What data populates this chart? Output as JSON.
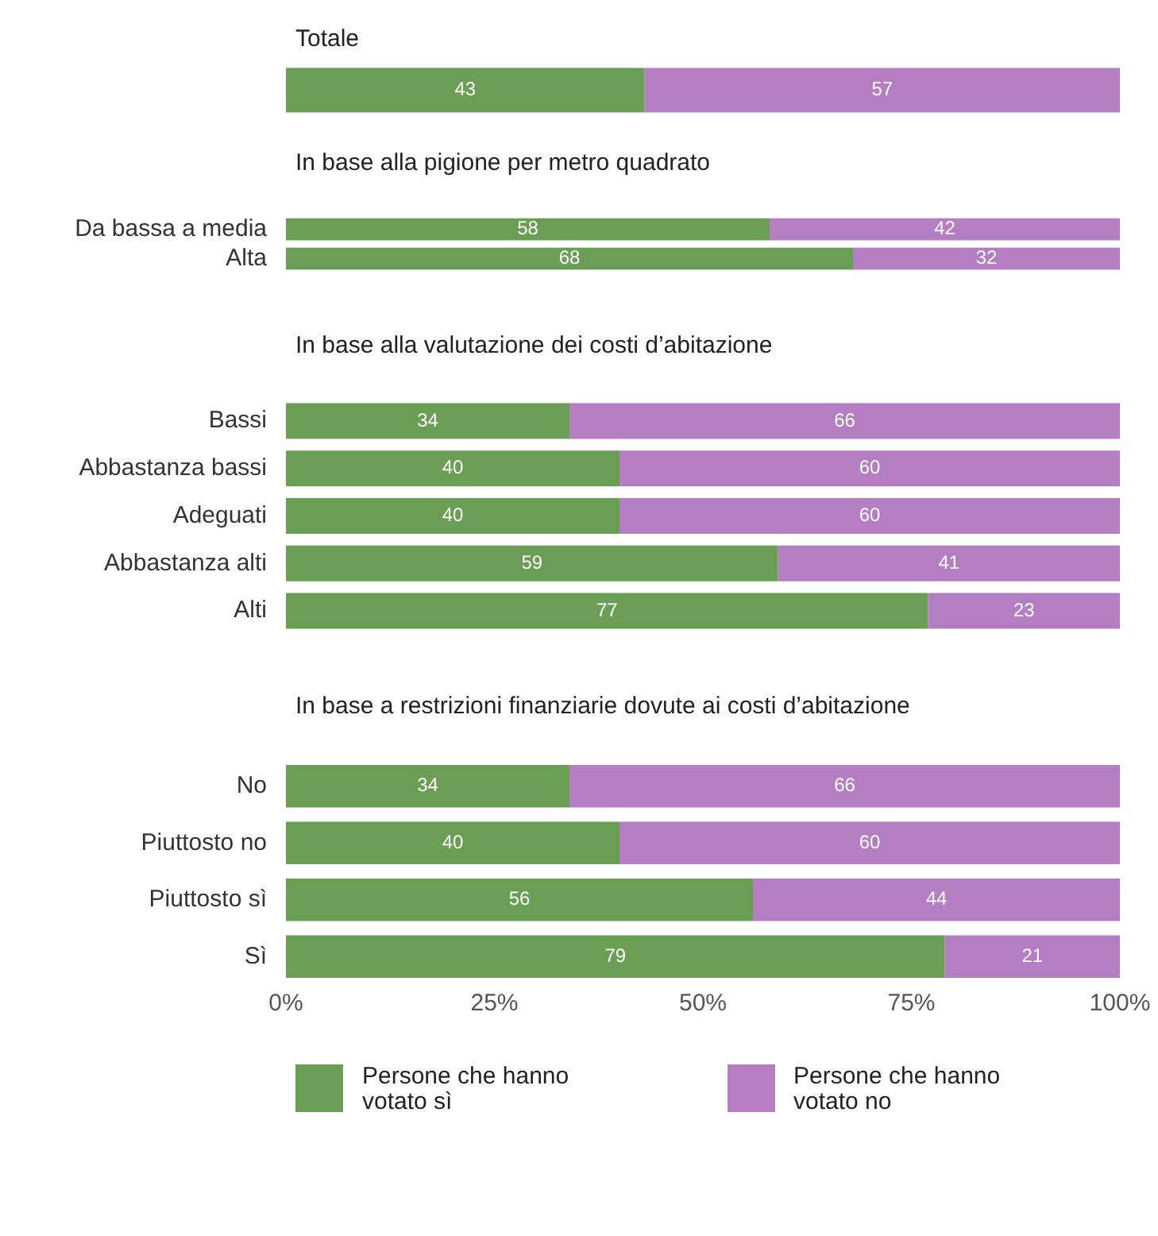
{
  "chart_data": [
    {
      "type": "bar",
      "orientation": "horizontal",
      "stacked": true,
      "title": "Totale",
      "categories": [
        null
      ],
      "series": [
        {
          "color": "#6a9e55",
          "values": [
            43
          ]
        },
        {
          "color": "#b57dc2",
          "values": [
            57
          ]
        }
      ],
      "xlim": [
        0,
        100
      ],
      "tick_labels": false,
      "data_labels": true,
      "legend": false
    },
    {
      "type": "bar",
      "orientation": "horizontal",
      "stacked": true,
      "title": "In base alla pigione per metro quadrato",
      "categories": [
        "Da bassa a media",
        "Alta"
      ],
      "series": [
        {
          "color": "#6a9e55",
          "values": [
            58,
            68
          ]
        },
        {
          "color": "#b57dc2",
          "values": [
            42,
            32
          ]
        }
      ],
      "xlim": [
        0,
        100
      ],
      "tick_labels": "y",
      "data_labels": true,
      "legend": false
    },
    {
      "type": "bar",
      "orientation": "horizontal",
      "stacked": true,
      "title": "In base alla valutazione dei costi d’abitazione",
      "categories": [
        "Bassi",
        "Abbastanza bassi",
        "Adeguati",
        "Abbastanza alti",
        "Alti"
      ],
      "series": [
        {
          "color": "#6a9e55",
          "values": [
            34,
            40,
            40,
            59,
            77
          ]
        },
        {
          "color": "#b57dc2",
          "values": [
            66,
            60,
            60,
            41,
            23
          ]
        }
      ],
      "xlim": [
        0,
        100
      ],
      "tick_labels": "y",
      "data_labels": true,
      "legend": false
    },
    {
      "type": "bar",
      "orientation": "horizontal",
      "stacked": true,
      "title": "In base a restrizioni finanziarie dovute ai costi d’abitazione",
      "categories": [
        "No",
        "Piuttosto no",
        "Piuttosto sì",
        "Sì"
      ],
      "series": [
        {
          "name": "Persone che hanno votato sì",
          "color": "#6a9e55",
          "values": [
            34,
            40,
            56,
            79
          ]
        },
        {
          "name": "Persone che hanno votato no",
          "color": "#b57dc2",
          "values": [
            66,
            60,
            44,
            21
          ]
        }
      ],
      "xlim": [
        0,
        100
      ],
      "xticks": [
        {
          "value": 0,
          "label": "0%"
        },
        {
          "value": 25,
          "label": "25%"
        },
        {
          "value": 50,
          "label": "50%"
        },
        {
          "value": 75,
          "label": "75%"
        },
        {
          "value": 100,
          "label": "100%"
        }
      ],
      "data_labels": true,
      "legend": "bottom"
    }
  ]
}
